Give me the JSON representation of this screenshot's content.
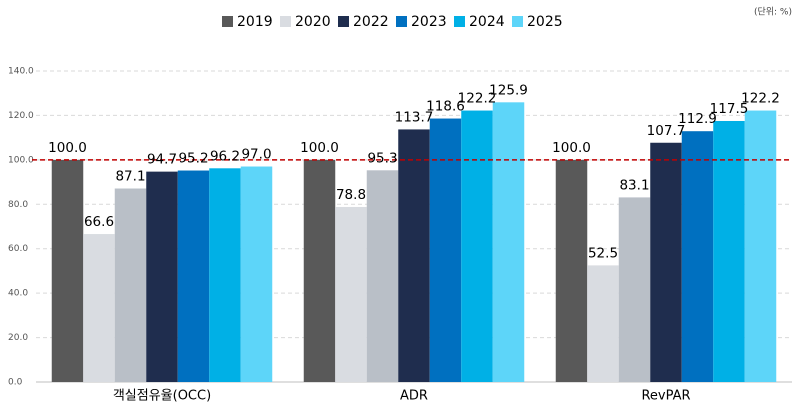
{
  "chart_data": {
    "type": "bar",
    "unit_label": "(단위: %)",
    "categories": [
      "객실점유율(OCC)",
      "ADR",
      "RevPAR"
    ],
    "series": [
      {
        "name": "2019",
        "color": "#595959",
        "values": [
          100,
          100,
          100
        ],
        "value_labels": [
          "100.0",
          "100.0",
          "100.0"
        ]
      },
      {
        "name": "2020",
        "color": "#d9dce1",
        "values": [
          66.6,
          78.8,
          52.5
        ],
        "value_labels": [
          "66.6",
          "78.8",
          "52.5"
        ]
      },
      {
        "color": "#b9bfc7",
        "values": [
          87.1,
          95.3,
          83.1
        ],
        "value_labels": [
          "87.1",
          "95.3",
          "83.1"
        ]
      },
      {
        "name": "2022",
        "color": "#1f2d4e",
        "values": [
          94.7,
          113.7,
          107.7
        ],
        "value_labels": [
          "94.7",
          "113.7",
          "107.7"
        ]
      },
      {
        "name": "2023",
        "color": "#0070c0",
        "values": [
          95.2,
          118.6,
          112.9
        ],
        "value_labels": [
          "95.2",
          "118.6",
          "112.9"
        ]
      },
      {
        "name": "2024",
        "color": "#00b0e6",
        "values": [
          96.2,
          122.2,
          117.5
        ],
        "value_labels": [
          "96.2",
          "122.2",
          "117.5"
        ]
      },
      {
        "name": "2025",
        "color": "#5dd5f9",
        "values": [
          97,
          125.9,
          122.2
        ],
        "value_labels": [
          "97.0",
          "125.9",
          "122.2"
        ]
      }
    ],
    "ylim": [
      0,
      140
    ],
    "yticks": [
      {
        "value": 0,
        "label": "0.0"
      },
      {
        "value": 20,
        "label": "20.0"
      },
      {
        "value": 40,
        "label": "40.0"
      },
      {
        "value": 60,
        "label": "60.0"
      },
      {
        "value": 80,
        "label": "80.0"
      },
      {
        "value": 100,
        "label": "100.0"
      },
      {
        "value": 120,
        "label": "120.0"
      },
      {
        "value": 140,
        "label": "140.0"
      }
    ],
    "grid": true,
    "reference_line": {
      "value": 100,
      "color": "#c00000"
    }
  }
}
